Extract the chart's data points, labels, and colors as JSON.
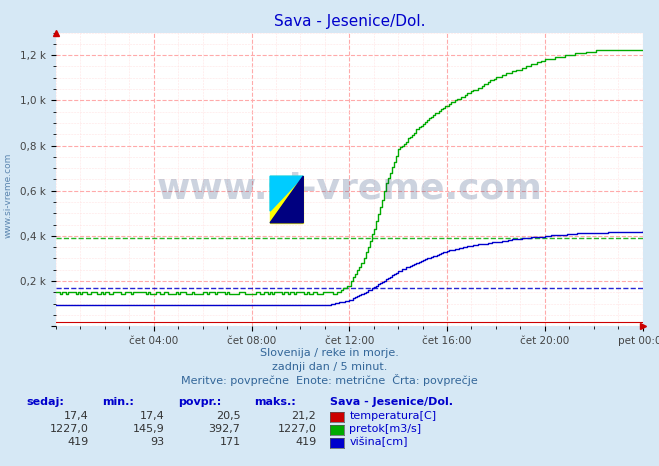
{
  "title": "Sava - Jesenice/Dol.",
  "title_color": "#0000cc",
  "bg_color": "#d6e8f5",
  "plot_bg_color": "#ffffff",
  "grid_major_color": "#ffaaaa",
  "grid_minor_color": "#ffdddd",
  "xtick_labels": [
    "čet 04:00",
    "čet 08:00",
    "čet 12:00",
    "čet 16:00",
    "čet 20:00",
    "pet 00:00"
  ],
  "xtick_positions": [
    4,
    8,
    12,
    16,
    20,
    24
  ],
  "ytick_positions": [
    0,
    200,
    400,
    600,
    800,
    1000,
    1200
  ],
  "ytick_labels": [
    "",
    "0,2 k",
    "0,4 k",
    "0,6 k",
    "0,8 k",
    "1,0 k",
    "1,2 k"
  ],
  "watermark_text": "www.si-vreme.com",
  "watermark_color": "#1a3a6e",
  "watermark_alpha": 0.22,
  "footer_line1": "Slovenija / reke in morje.",
  "footer_line2": "zadnji dan / 5 minut.",
  "footer_line3": "Meritve: povprečne  Enote: metrične  Črta: povprečje",
  "footer_color": "#336699",
  "sidebar_text": "www.si-vreme.com",
  "sidebar_color": "#336699",
  "temp_color": "#cc0000",
  "pretok_color": "#00aa00",
  "visina_color": "#0000cc",
  "avg_line_pretok": 392.7,
  "avg_line_visina": 171,
  "avg_line_temp": 20.5,
  "xlim": [
    0,
    24
  ],
  "ylim": [
    0,
    1300
  ],
  "header_labels": [
    "sedaj:",
    "min.:",
    "povpr.:",
    "maks.:",
    "Sava - Jesenice/Dol."
  ],
  "row_sedaj": [
    "17,4",
    "1227,0",
    "419"
  ],
  "row_min": [
    "17,4",
    "145,9",
    "93"
  ],
  "row_povpr": [
    "20,5",
    "392,7",
    "171"
  ],
  "row_maks": [
    "21,2",
    "1227,0",
    "419"
  ],
  "row_labels": [
    "temperatura[C]",
    "pretok[m3/s]",
    "višina[cm]"
  ],
  "row_colors": [
    "#cc0000",
    "#00aa00",
    "#0000cc"
  ]
}
